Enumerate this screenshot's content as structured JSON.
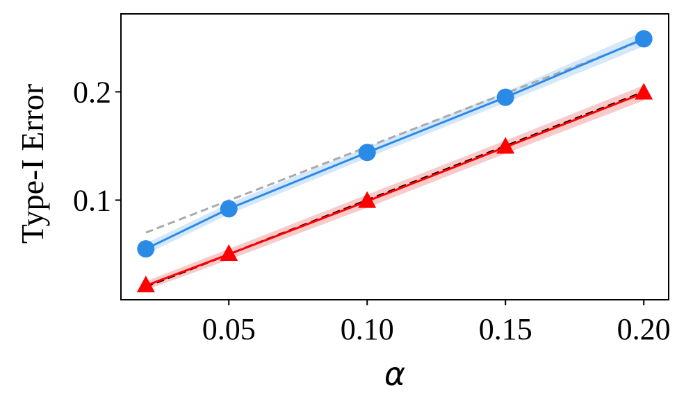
{
  "chart_data": {
    "type": "line",
    "title": "",
    "xlabel": "α",
    "ylabel": "Type-I Error",
    "xlim": [
      0.011,
      0.209
    ],
    "ylim": [
      0.008,
      0.272
    ],
    "x_ticks": [
      0.05,
      0.1,
      0.15,
      0.2
    ],
    "x_tick_labels": [
      "0.05",
      "0.10",
      "0.15",
      "0.20"
    ],
    "y_ticks": [
      0.1,
      0.2
    ],
    "y_tick_labels": [
      "0.1",
      "0.2"
    ],
    "grid": false,
    "series": [
      {
        "kind": "reference",
        "color": "#aaaaaa",
        "dash": true,
        "x": [
          0.02,
          0.2
        ],
        "y": [
          0.07,
          0.248
        ]
      },
      {
        "kind": "reference",
        "color": "#000000",
        "dash": true,
        "x": [
          0.02,
          0.2
        ],
        "y": [
          0.02,
          0.2
        ]
      },
      {
        "kind": "data",
        "color": "#2a8ae6",
        "band_color": "#cfe4fb",
        "marker": "circle",
        "x": [
          0.02,
          0.05,
          0.1,
          0.15,
          0.2
        ],
        "y": [
          0.055,
          0.092,
          0.144,
          0.195,
          0.249
        ],
        "band_halfwidth": [
          0.005,
          0.005,
          0.005,
          0.005,
          0.007
        ]
      },
      {
        "kind": "data",
        "color": "#ff0000",
        "band_color": "#f7c4c4",
        "marker": "triangle",
        "x": [
          0.02,
          0.05,
          0.1,
          0.15,
          0.2
        ],
        "y": [
          0.021,
          0.05,
          0.099,
          0.149,
          0.199
        ],
        "band_halfwidth": [
          0.004,
          0.005,
          0.006,
          0.006,
          0.007
        ]
      }
    ]
  }
}
